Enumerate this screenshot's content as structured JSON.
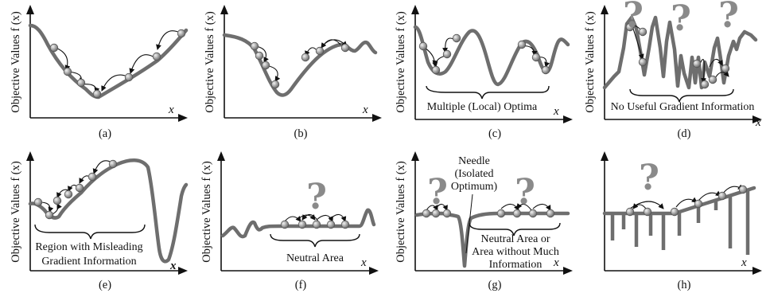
{
  "y_axis_label": "Objective Values f (x)",
  "x_axis_label": "x",
  "x_axis_label_bold": "x",
  "question_mark": "?",
  "panels": {
    "a": {
      "caption": "(a)"
    },
    "b": {
      "caption": "(b)"
    },
    "c": {
      "caption": "(c)",
      "annotation": "Multiple (Local) Optima"
    },
    "d": {
      "caption": "(d)",
      "annotation": "No Useful Gradient Information"
    },
    "e": {
      "caption": "(e)",
      "annotation_lines": [
        "Region with Misleading",
        "Gradient Information"
      ]
    },
    "f": {
      "caption": "(f)",
      "annotation": "Neutral Area"
    },
    "g": {
      "caption": "(g)",
      "needle_lines": [
        "Needle",
        "(Isolated",
        "Optimum)"
      ],
      "neutral_lines": [
        "Neutral Area or",
        "Area without Much",
        "Information"
      ]
    },
    "h": {
      "caption": "(h)"
    }
  }
}
